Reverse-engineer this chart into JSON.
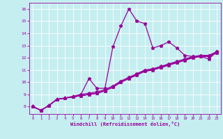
{
  "xlabel": "Windchill (Refroidissement éolien,°C)",
  "xlim": [
    -0.5,
    23.5
  ],
  "ylim": [
    7.4,
    16.5
  ],
  "xticks": [
    0,
    1,
    2,
    3,
    4,
    5,
    6,
    7,
    8,
    9,
    10,
    11,
    12,
    13,
    14,
    15,
    16,
    17,
    18,
    19,
    20,
    21,
    22,
    23
  ],
  "yticks": [
    8,
    9,
    10,
    11,
    12,
    13,
    14,
    15,
    16
  ],
  "bg_color": "#c5eef0",
  "line_color": "#990099",
  "line_width": 0.9,
  "marker": "*",
  "marker_size": 3.5,
  "lines": [
    [
      8.0,
      7.7,
      8.1,
      8.6,
      8.7,
      8.8,
      9.0,
      10.3,
      9.5,
      9.5,
      12.9,
      14.6,
      16.0,
      15.0,
      14.8,
      12.8,
      13.0,
      13.3,
      12.8,
      12.2,
      12.1,
      12.1,
      11.9,
      12.5
    ],
    [
      8.0,
      7.7,
      8.1,
      8.6,
      8.7,
      8.8,
      8.9,
      9.0,
      9.1,
      9.3,
      9.6,
      10.0,
      10.35,
      10.65,
      10.95,
      11.05,
      11.25,
      11.45,
      11.65,
      11.85,
      12.05,
      12.15,
      12.15,
      12.45
    ],
    [
      8.0,
      7.7,
      8.1,
      8.6,
      8.7,
      8.8,
      8.9,
      9.0,
      9.1,
      9.3,
      9.6,
      10.0,
      10.3,
      10.6,
      10.9,
      11.0,
      11.2,
      11.4,
      11.6,
      11.8,
      12.0,
      12.1,
      12.1,
      12.4
    ],
    [
      8.0,
      7.7,
      8.1,
      8.6,
      8.7,
      8.85,
      9.0,
      9.1,
      9.2,
      9.4,
      9.7,
      10.1,
      10.4,
      10.7,
      11.0,
      11.1,
      11.3,
      11.5,
      11.7,
      11.9,
      12.1,
      12.2,
      12.2,
      12.5
    ],
    [
      8.0,
      7.7,
      8.1,
      8.6,
      8.7,
      8.8,
      8.9,
      9.0,
      9.1,
      9.3,
      9.6,
      10.0,
      10.3,
      10.6,
      10.9,
      11.0,
      11.2,
      11.4,
      11.6,
      11.8,
      12.0,
      12.1,
      12.1,
      12.4
    ]
  ]
}
